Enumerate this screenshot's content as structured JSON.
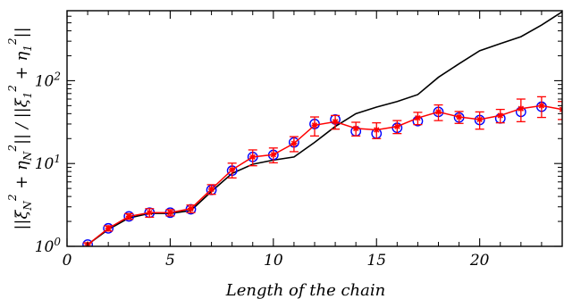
{
  "chart_data": {
    "type": "line",
    "title": "",
    "xlabel": "Length of the chain",
    "ylabel": "||ξ_N² + η_N²|| / ||ξ_1² + η_1²||",
    "xscale": "linear",
    "yscale": "log",
    "xlim": [
      0,
      24
    ],
    "ylim": [
      1,
      700
    ],
    "grid": false,
    "x_ticks": [
      0,
      5,
      10,
      15,
      20
    ],
    "y_ticks": [
      {
        "value": 1,
        "base": "10",
        "exp": "0"
      },
      {
        "value": 10,
        "base": "10",
        "exp": "1"
      },
      {
        "value": 100,
        "base": "10",
        "exp": "2"
      }
    ],
    "series": [
      {
        "style": "black-line",
        "color": "#000000",
        "x": [
          1,
          2,
          3,
          4,
          5,
          6,
          7,
          8,
          9,
          10,
          11,
          12,
          13,
          14,
          15,
          16,
          17,
          18,
          19,
          20,
          21,
          22,
          23,
          24
        ],
        "y": [
          1.05,
          1.6,
          2.2,
          2.5,
          2.5,
          2.7,
          4.6,
          7.6,
          9.8,
          11.0,
          12.0,
          18,
          28,
          40,
          48,
          56,
          68,
          110,
          160,
          230,
          280,
          340,
          470,
          680
        ]
      },
      {
        "style": "red-line-star-errorbars",
        "color": "#ff0000",
        "x": [
          1,
          2,
          3,
          4,
          5,
          6,
          7,
          8,
          9,
          10,
          11,
          12,
          13,
          14,
          15,
          16,
          17,
          18,
          19,
          20,
          21,
          22,
          23,
          24
        ],
        "y": [
          1.05,
          1.65,
          2.3,
          2.55,
          2.55,
          2.85,
          4.9,
          8.4,
          12.0,
          12.8,
          17.5,
          29.0,
          32.0,
          26.5,
          25.5,
          28.0,
          35.5,
          42.0,
          36.5,
          34.0,
          38.0,
          46.0,
          50.0,
          45.0
        ],
        "err": [
          0.05,
          0.12,
          0.18,
          0.3,
          0.22,
          0.3,
          0.65,
          1.7,
          2.6,
          2.6,
          3.6,
          7.5,
          6.0,
          5.0,
          5.5,
          5.0,
          6.0,
          9.0,
          6.0,
          8.0,
          7.0,
          14.0,
          14.0,
          11.0
        ]
      },
      {
        "style": "blue-circles",
        "color": "#0000ff",
        "x": [
          1,
          2,
          3,
          4,
          5,
          6,
          7,
          8,
          9,
          10,
          11,
          12,
          13,
          14,
          15,
          16,
          17,
          18,
          19,
          20,
          21,
          22,
          23
        ],
        "y": [
          1.05,
          1.65,
          2.3,
          2.55,
          2.55,
          2.8,
          4.8,
          8.2,
          12.0,
          12.7,
          18.0,
          30.0,
          34.0,
          24.5,
          23.0,
          27.0,
          32.5,
          42.0,
          36.0,
          33.5,
          35.0,
          42.0,
          48.5
        ]
      }
    ]
  }
}
